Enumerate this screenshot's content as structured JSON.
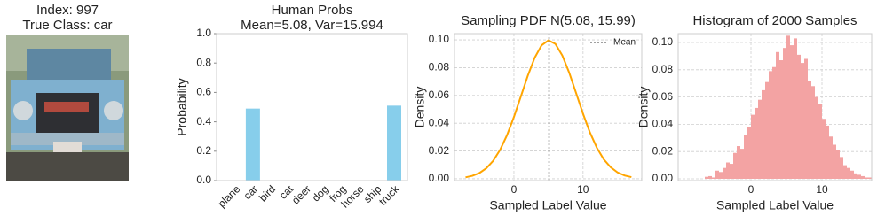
{
  "image_panel": {
    "title": "Index: 997",
    "subtitle": "True Class: car"
  },
  "chart_data": [
    {
      "type": "bar",
      "title": "Human Probs",
      "subtitle": "Mean=5.08, Var=15.994",
      "ylabel": "Probability",
      "categories": [
        "plane",
        "car",
        "bird",
        "cat",
        "deer",
        "dog",
        "frog",
        "horse",
        "ship",
        "truck"
      ],
      "values": [
        0,
        0.49,
        0,
        0,
        0,
        0,
        0,
        0,
        0,
        0.51
      ],
      "color": "#87ceeb",
      "ylim": [
        0,
        1
      ],
      "yticks": [
        {
          "value": 0,
          "label": "0.0"
        },
        {
          "value": 0.2,
          "label": "0.2"
        },
        {
          "value": 0.4,
          "label": "0.4"
        },
        {
          "value": 0.6,
          "label": "0.6"
        },
        {
          "value": 0.8,
          "label": "0.8"
        },
        {
          "value": 1,
          "label": "1.0"
        }
      ],
      "grid": false
    },
    {
      "type": "line",
      "title": "Sampling PDF N(5.08, 15.99)",
      "xlabel": "Sampled Label Value",
      "ylabel": "Density",
      "x": [
        -7,
        -6,
        -5,
        -4,
        -3,
        -2,
        -1,
        0,
        1,
        2,
        3,
        4,
        5,
        6,
        7,
        8,
        9,
        10,
        11,
        12,
        13,
        14,
        15,
        16,
        17
      ],
      "values": [
        0.00104,
        0.00215,
        0.00416,
        0.00757,
        0.01294,
        0.0208,
        0.0314,
        0.0445,
        0.0592,
        0.0741,
        0.0871,
        0.0961,
        0.0997,
        0.0971,
        0.0888,
        0.0764,
        0.0617,
        0.0468,
        0.0333,
        0.0223,
        0.014,
        0.0083,
        0.0046,
        0.0024,
        0.0012
      ],
      "color": "#ffa500",
      "mean_line": {
        "name": "Mean",
        "x": 5.08,
        "color": "#808080"
      },
      "xlim": [
        -8.6,
        18.5
      ],
      "xticks": [
        0,
        10
      ],
      "ylim": [
        -0.0013,
        0.1045
      ],
      "yticks": [
        {
          "value": 0,
          "label": "0.00"
        },
        {
          "value": 0.02,
          "label": "0.02"
        },
        {
          "value": 0.04,
          "label": "0.04"
        },
        {
          "value": 0.06,
          "label": "0.06"
        },
        {
          "value": 0.08,
          "label": "0.08"
        },
        {
          "value": 0.1,
          "label": "0.10"
        }
      ],
      "grid": true
    },
    {
      "type": "histogram",
      "title": "Histogram of 2000 Samples",
      "xlabel": "Sampled Label Value",
      "ylabel": "Density",
      "bins": [
        -6.5,
        -6,
        -5.5,
        -5,
        -4.5,
        -4,
        -3.5,
        -3,
        -2.5,
        -2,
        -1.5,
        -1,
        -0.5,
        0,
        0.5,
        1,
        1.5,
        2,
        2.5,
        3,
        3.5,
        4,
        4.5,
        5,
        5.5,
        6,
        6.5,
        7,
        7.5,
        8,
        8.5,
        9,
        9.5,
        10,
        10.5,
        11,
        11.5,
        12,
        12.5,
        13,
        13.5,
        14,
        14.5,
        15,
        15.5,
        16,
        16.5,
        17
      ],
      "values": [
        0.0015,
        0.002,
        0.001,
        0.006,
        0.005,
        0.008,
        0.012,
        0.011,
        0.019,
        0.024,
        0.022,
        0.032,
        0.038,
        0.047,
        0.052,
        0.058,
        0.065,
        0.071,
        0.079,
        0.082,
        0.093,
        0.087,
        0.096,
        0.105,
        0.098,
        0.103,
        0.091,
        0.085,
        0.088,
        0.072,
        0.068,
        0.06,
        0.055,
        0.044,
        0.039,
        0.031,
        0.025,
        0.021,
        0.016,
        0.01,
        0.008,
        0.006,
        0.004,
        0.003,
        0.002,
        0.001,
        0.001
      ],
      "color": "#f3a3a3",
      "xlim": [
        -10.25,
        17
      ],
      "xticks": [
        0,
        10
      ],
      "ylim": [
        -0.0013,
        0.1065
      ],
      "yticks": [
        {
          "value": 0,
          "label": "0.00"
        },
        {
          "value": 0.02,
          "label": "0.02"
        },
        {
          "value": 0.04,
          "label": "0.04"
        },
        {
          "value": 0.06,
          "label": "0.06"
        },
        {
          "value": 0.08,
          "label": "0.08"
        },
        {
          "value": 0.1,
          "label": "0.10"
        }
      ],
      "grid": true
    }
  ]
}
